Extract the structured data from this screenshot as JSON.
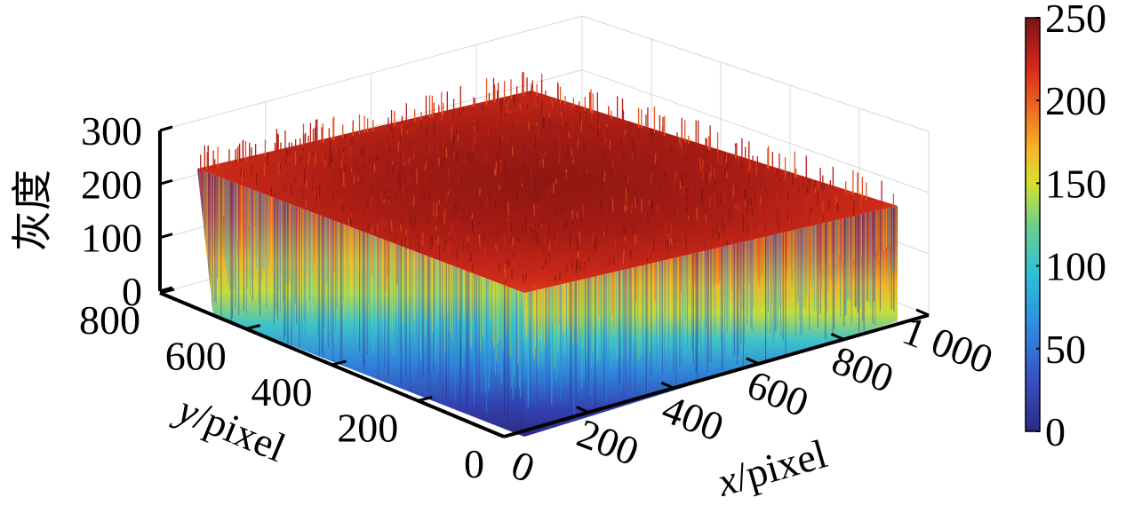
{
  "chart_data": {
    "type": "surface3d",
    "title": "",
    "zlabel": "灰度",
    "xlabel": {
      "var": "x",
      "unit": "/pixel"
    },
    "ylabel": {
      "var": "y",
      "unit": "/pixel"
    },
    "x_ticks": [
      "0",
      "200",
      "400",
      "600",
      "800",
      "1 000"
    ],
    "y_ticks": [
      "0",
      "200",
      "400",
      "600",
      "800"
    ],
    "z_ticks": [
      "0",
      "100",
      "200",
      "300"
    ],
    "xlim": [
      0,
      1000
    ],
    "ylim": [
      0,
      800
    ],
    "zlim": [
      0,
      300
    ],
    "colorbar": {
      "colormap": "jet",
      "range": [
        0,
        250
      ],
      "ticks": [
        "0",
        "50",
        "100",
        "150",
        "200",
        "250"
      ]
    },
    "grid": true
  }
}
